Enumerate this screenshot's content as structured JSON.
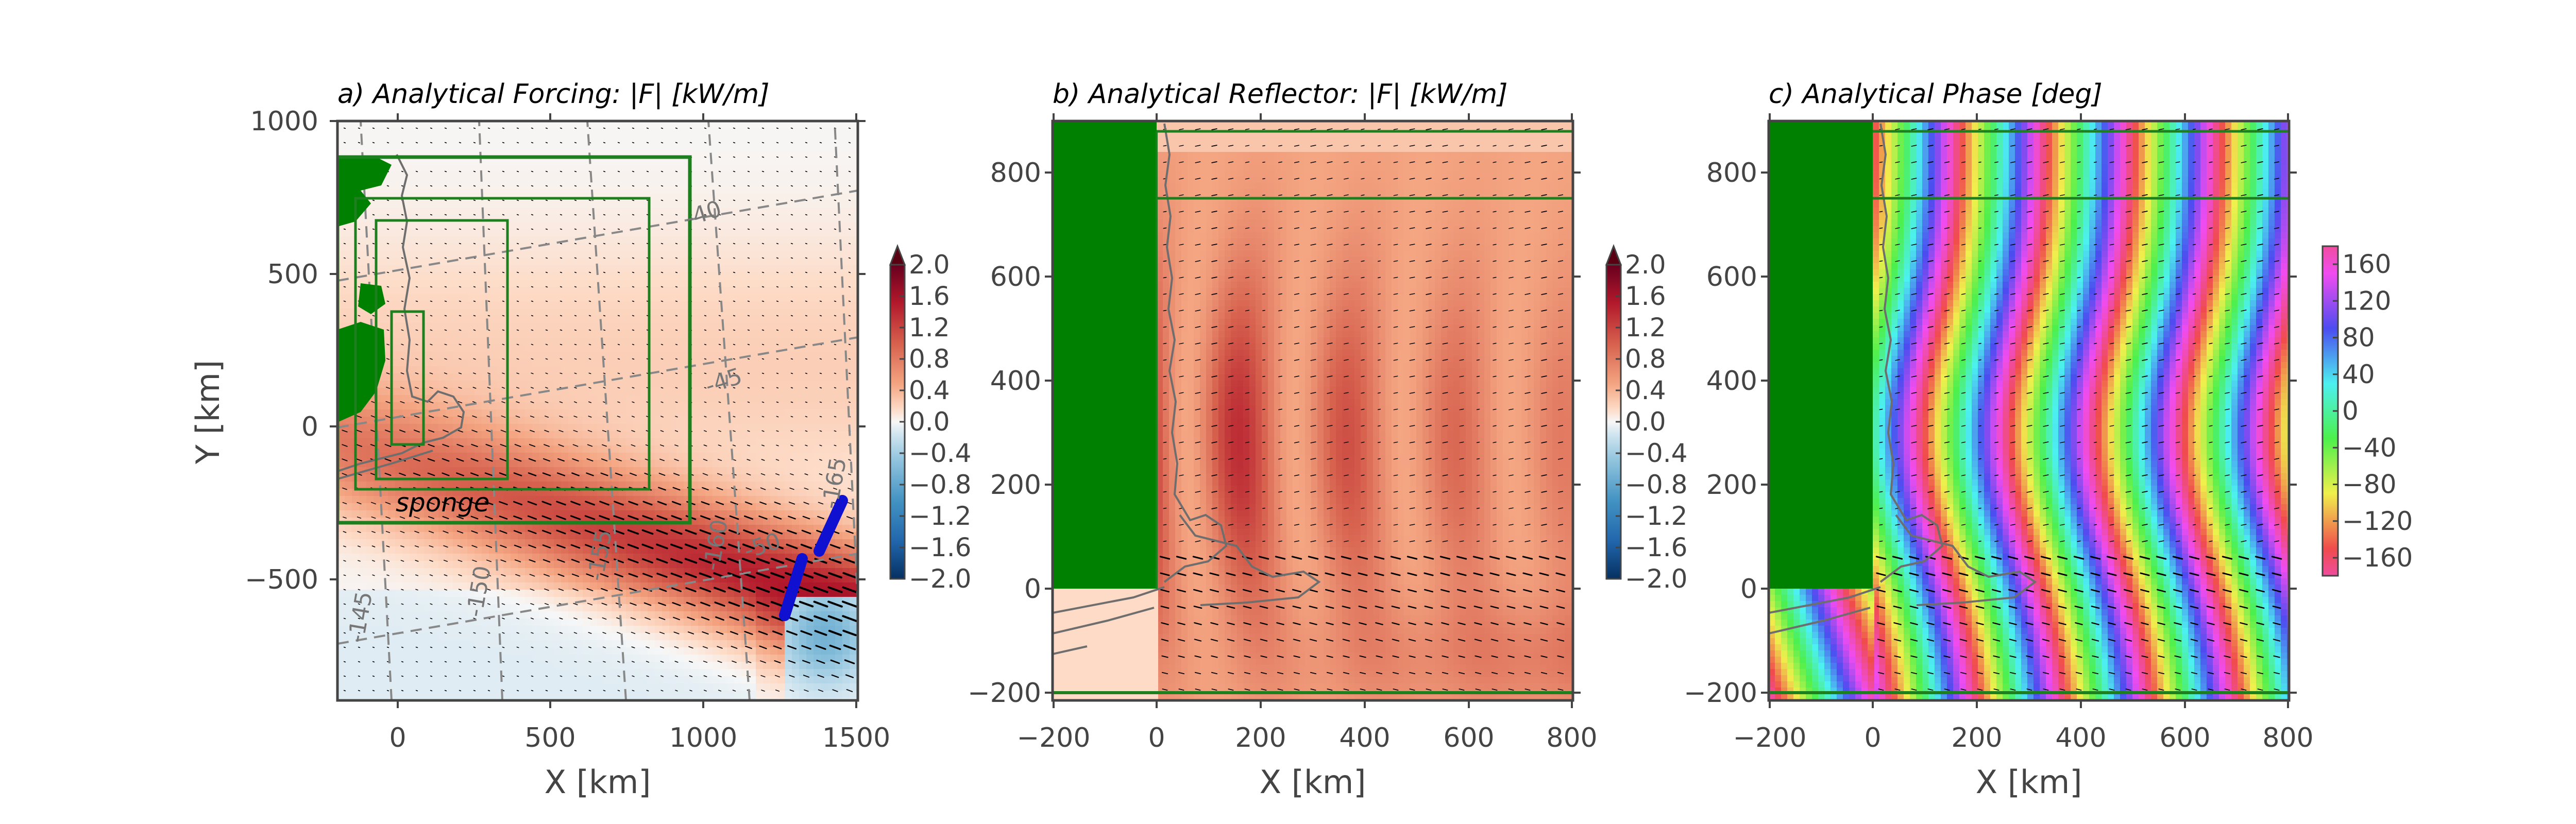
{
  "chart_data": [
    {
      "type": "heatmap",
      "title": "a) Analytical Forcing: |F| [kW/m]",
      "xlabel": "X [km]",
      "ylabel": "Y [km]",
      "xlim": [
        -200,
        1500
      ],
      "ylim": [
        -900,
        1000
      ],
      "xticks": [
        "0",
        "500",
        "1000",
        "1500"
      ],
      "yticks": [
        "1000",
        "500",
        "0",
        "−500"
      ],
      "annotations": [
        "sponge",
        "-40",
        "-45",
        "-50",
        "-145",
        "-150",
        "-155",
        "-160",
        "-165"
      ],
      "colorbar": {
        "ticks": [
          "2.0",
          "1.6",
          "1.2",
          "0.8",
          "0.4",
          "0.0",
          "−0.4",
          "−0.8",
          "−1.2",
          "−1.6",
          "−2.0"
        ],
        "range": [
          -2.0,
          2.0
        ],
        "extend": "max"
      }
    },
    {
      "type": "heatmap",
      "title": "b) Analytical Reflector: |F| [kW/m]",
      "xlabel": "X [km]",
      "ylabel": "",
      "xlim": [
        -200,
        800
      ],
      "ylim": [
        -220,
        900
      ],
      "xticks": [
        "−200",
        "0",
        "200",
        "400",
        "600",
        "800"
      ],
      "yticks": [
        "800",
        "600",
        "400",
        "200",
        "0",
        "−200"
      ],
      "colorbar": {
        "ticks": [
          "2.0",
          "1.6",
          "1.2",
          "0.8",
          "0.4",
          "0.0",
          "−0.4",
          "−0.8",
          "−1.2",
          "−1.6",
          "−2.0"
        ],
        "range": [
          -2.0,
          2.0
        ],
        "extend": "max"
      }
    },
    {
      "type": "heatmap",
      "title": "c) Analytical Phase [deg]",
      "xlabel": "X [km]",
      "ylabel": "",
      "xlim": [
        -200,
        800
      ],
      "ylim": [
        -220,
        900
      ],
      "xticks": [
        "−200",
        "0",
        "200",
        "400",
        "600",
        "800"
      ],
      "yticks": [
        "800",
        "600",
        "400",
        "200",
        "0",
        "−200"
      ],
      "colorbar": {
        "ticks": [
          "160",
          "120",
          "80",
          "40",
          "0",
          "−40",
          "−80",
          "−120",
          "−160"
        ],
        "range": [
          -180,
          180
        ]
      }
    }
  ],
  "colors": {
    "land": "#008000",
    "coast": "#6e6e6e",
    "box": "#1e7f1e",
    "antenna": "#1010d0",
    "arrow": "#000000",
    "grid_dash": "#888888"
  }
}
